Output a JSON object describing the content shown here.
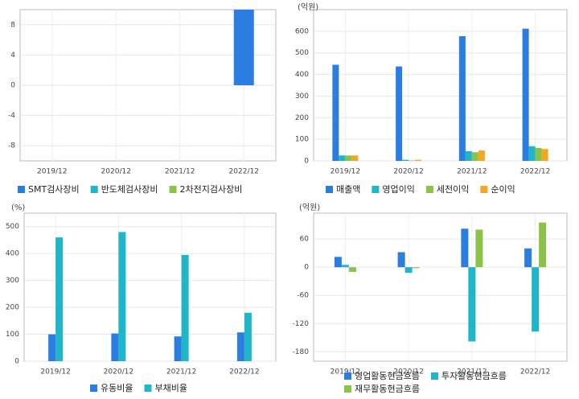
{
  "chart_data": [
    {
      "type": "bar",
      "categories": [
        "2019/12",
        "2020/12",
        "2021/12",
        "2022/12"
      ],
      "series": [
        {
          "name": "SMT검사장비",
          "color": "#2a7de1",
          "values": [
            null,
            null,
            null,
            10
          ]
        },
        {
          "name": "반도체검사장비",
          "color": "#1fb6c9",
          "values": [
            null,
            null,
            null,
            null
          ]
        },
        {
          "name": "2차전지검사장비",
          "color": "#8bc34a",
          "values": [
            null,
            null,
            null,
            null
          ]
        }
      ],
      "ylim": [
        -10,
        10
      ],
      "yticks": [
        8,
        4,
        0,
        -4,
        -8
      ],
      "grid": true
    },
    {
      "type": "bar",
      "unit_label": "(억원)",
      "categories": [
        "2019/12",
        "2020/12",
        "2021/12",
        "2022/12"
      ],
      "series": [
        {
          "name": "매출액",
          "color": "#2a7de1",
          "values": [
            445,
            437,
            577,
            612
          ]
        },
        {
          "name": "영업이익",
          "color": "#1fb6c9",
          "values": [
            25,
            5,
            45,
            68
          ]
        },
        {
          "name": "세전이익",
          "color": "#8bc34a",
          "values": [
            25,
            2,
            40,
            60
          ]
        },
        {
          "name": "순이익",
          "color": "#f5a623",
          "values": [
            25,
            5,
            48,
            55
          ]
        }
      ],
      "ylim": [
        0,
        700
      ],
      "yticks": [
        600,
        500,
        400,
        300,
        200,
        100,
        0
      ],
      "grid": true
    },
    {
      "type": "bar",
      "unit_label": "(%)",
      "categories": [
        "2019/12",
        "2020/12",
        "2021/12",
        "2022/12"
      ],
      "series": [
        {
          "name": "유동비율",
          "color": "#2a7de1",
          "values": [
            100,
            103,
            92,
            107
          ]
        },
        {
          "name": "부채비율",
          "color": "#1fb6c9",
          "values": [
            460,
            480,
            395,
            180
          ]
        }
      ],
      "ylim": [
        0,
        550
      ],
      "yticks": [
        500,
        400,
        300,
        200,
        100,
        0
      ],
      "grid": true
    },
    {
      "type": "bar",
      "unit_label": "(억원)",
      "categories": [
        "2019/12",
        "2020/12",
        "2021/12",
        "2022/12"
      ],
      "series": [
        {
          "name": "영업활동현금흐름",
          "color": "#2a7de1",
          "values": [
            22,
            32,
            82,
            40
          ]
        },
        {
          "name": "투자활동현금흐름",
          "color": "#1fb6c9",
          "values": [
            5,
            -12,
            -158,
            -137
          ]
        },
        {
          "name": "재무활동현금흐름",
          "color": "#8bc34a",
          "values": [
            -10,
            -2,
            80,
            95
          ]
        }
      ],
      "ylim": [
        -200,
        115
      ],
      "yticks": [
        60,
        0,
        -60,
        -120,
        -180
      ],
      "grid": true
    }
  ]
}
